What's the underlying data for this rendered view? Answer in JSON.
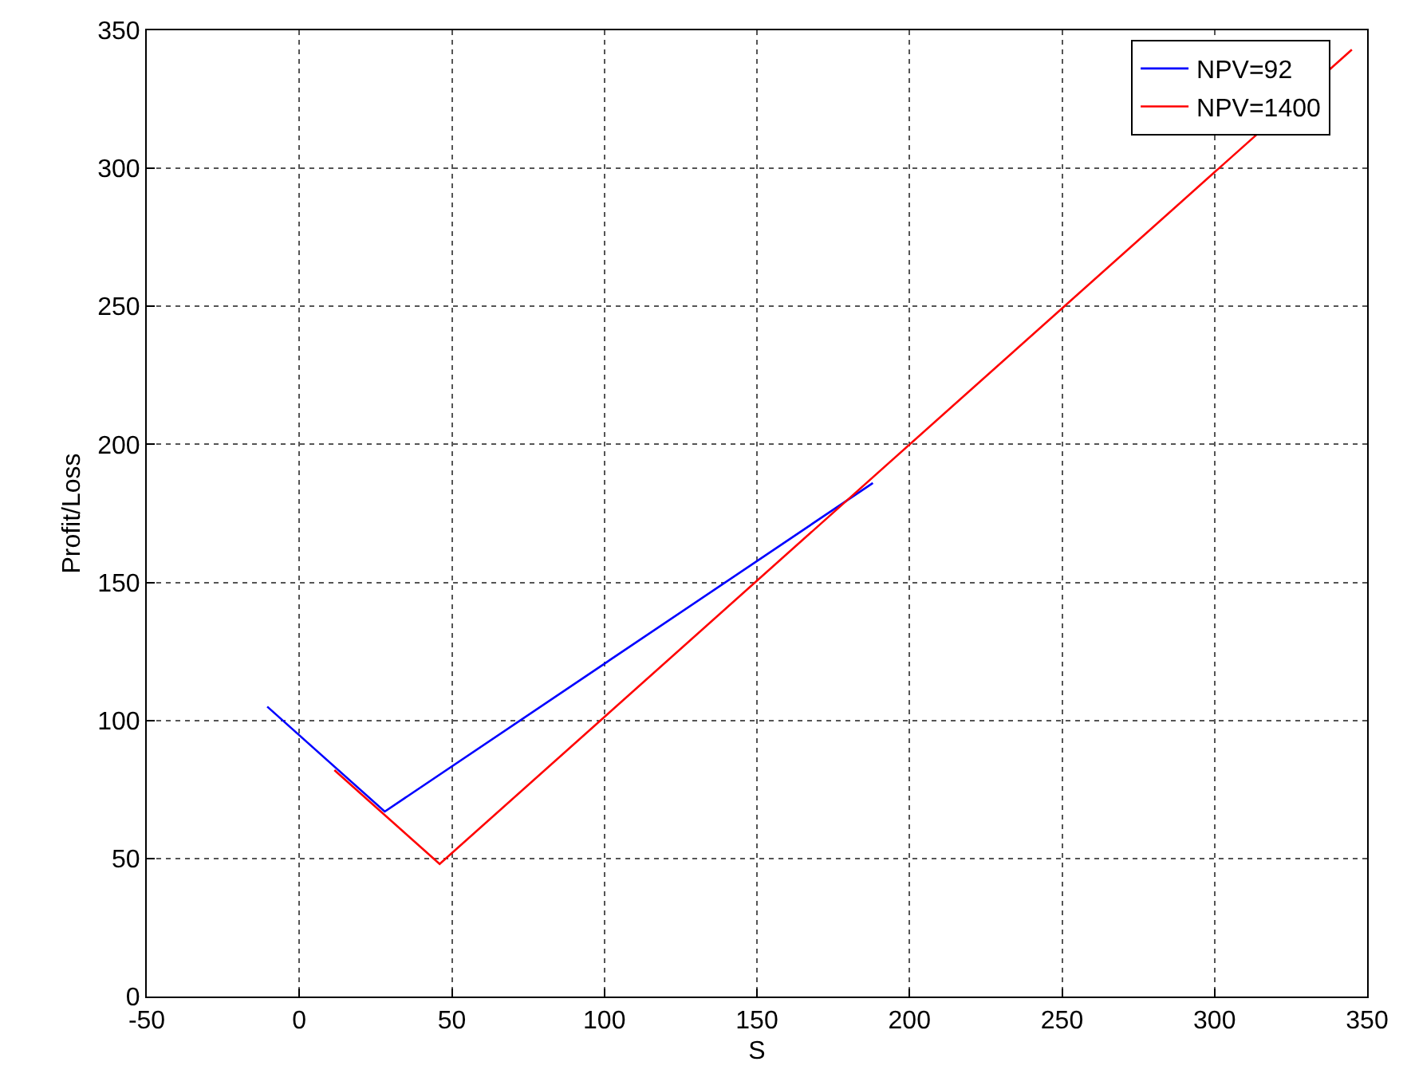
{
  "chart_data": {
    "type": "line",
    "xlabel": "S",
    "ylabel": "Profit/Loss",
    "series": [
      {
        "name": "NPV=92",
        "color": "#0000ff",
        "x": [
          -10.5,
          28,
          188
        ],
        "values": [
          105,
          67,
          186
        ]
      },
      {
        "name": "NPV=1400",
        "color": "#ff0000",
        "x": [
          11.5,
          46,
          345
        ],
        "values": [
          82,
          48,
          343
        ]
      }
    ],
    "xlim": [
      -50,
      350
    ],
    "xticks": [
      -50,
      0,
      50,
      100,
      150,
      200,
      250,
      300,
      350
    ],
    "ylim": [
      0,
      350
    ],
    "yticks": [
      0,
      50,
      100,
      150,
      200,
      250,
      300,
      350
    ],
    "grid": true,
    "legend": "top right",
    "marker": "none",
    "line_style": "solid"
  }
}
